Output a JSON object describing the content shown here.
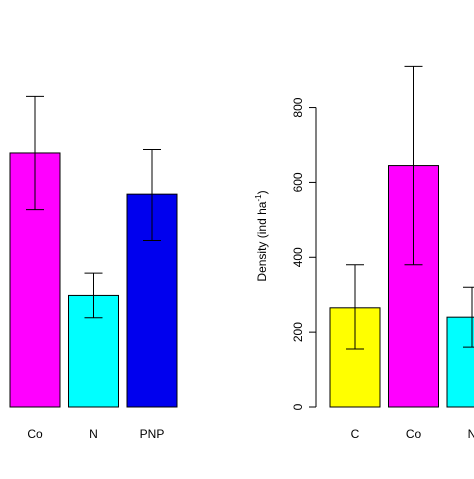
{
  "chart_data": [
    {
      "type": "bar",
      "categories": [
        "Co",
        "N",
        "PNP"
      ],
      "values": [
        740,
        325,
        620
      ],
      "error_upper": [
        905,
        390,
        750
      ],
      "error_lower": [
        575,
        260,
        485
      ],
      "colors": [
        "#ff00ff",
        "#00ffff",
        "#0000ee"
      ],
      "ylim": [
        0,
        1000
      ],
      "yticks": [],
      "ylabel": "",
      "title": ""
    },
    {
      "type": "bar",
      "categories": [
        "C",
        "Co",
        "N"
      ],
      "values": [
        265,
        645,
        240
      ],
      "error_upper": [
        380,
        910,
        320
      ],
      "error_lower": [
        155,
        380,
        160
      ],
      "colors": [
        "#ffff00",
        "#ff00ff",
        "#00ffff"
      ],
      "ylim": [
        0,
        900
      ],
      "yticks": [
        "0",
        "200",
        "400",
        "600",
        "800"
      ],
      "ytick_values": [
        0,
        200,
        400,
        600,
        800
      ],
      "ylabel": "Density (ind ha",
      "ylabel_sup": "-1",
      "ylabel_close": ")",
      "title": ""
    }
  ]
}
